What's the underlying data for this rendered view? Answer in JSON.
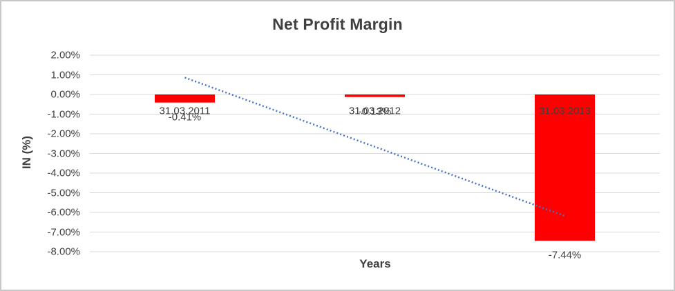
{
  "window": {
    "background_color": "#FFFFFF",
    "border_color": "#C8C8C8"
  },
  "chart_data": {
    "type": "bar",
    "title": "Net Profit Margin",
    "xlabel": "Years",
    "ylabel": "IN (%)",
    "categories": [
      "31.03.2011",
      "31.03.2012",
      "31.03.2013"
    ],
    "series": [
      {
        "name": "Net Profit Margin",
        "values": [
          -0.41,
          -0.13,
          -7.44
        ]
      }
    ],
    "data_labels": [
      "-0.41%",
      "-0.13%",
      "-7.44%"
    ],
    "ylim": [
      -8,
      2
    ],
    "ytick_step": 1,
    "ytick_labels": [
      "2.00%",
      "1.00%",
      "0.00%",
      "-1.00%",
      "-2.00%",
      "-3.00%",
      "-4.00%",
      "-5.00%",
      "-6.00%",
      "-7.00%",
      "-8.00%"
    ],
    "grid": true,
    "legend": "none",
    "trendline": {
      "type": "linear",
      "style": "dotted",
      "start_category_index": 0,
      "end_category_index": 2,
      "start_value": 0.86,
      "end_value": -6.18
    },
    "colors": {
      "bar": "#FF0000",
      "trendline": "#4472C4",
      "gridline": "#D9D9D9",
      "text": "#404040"
    }
  }
}
